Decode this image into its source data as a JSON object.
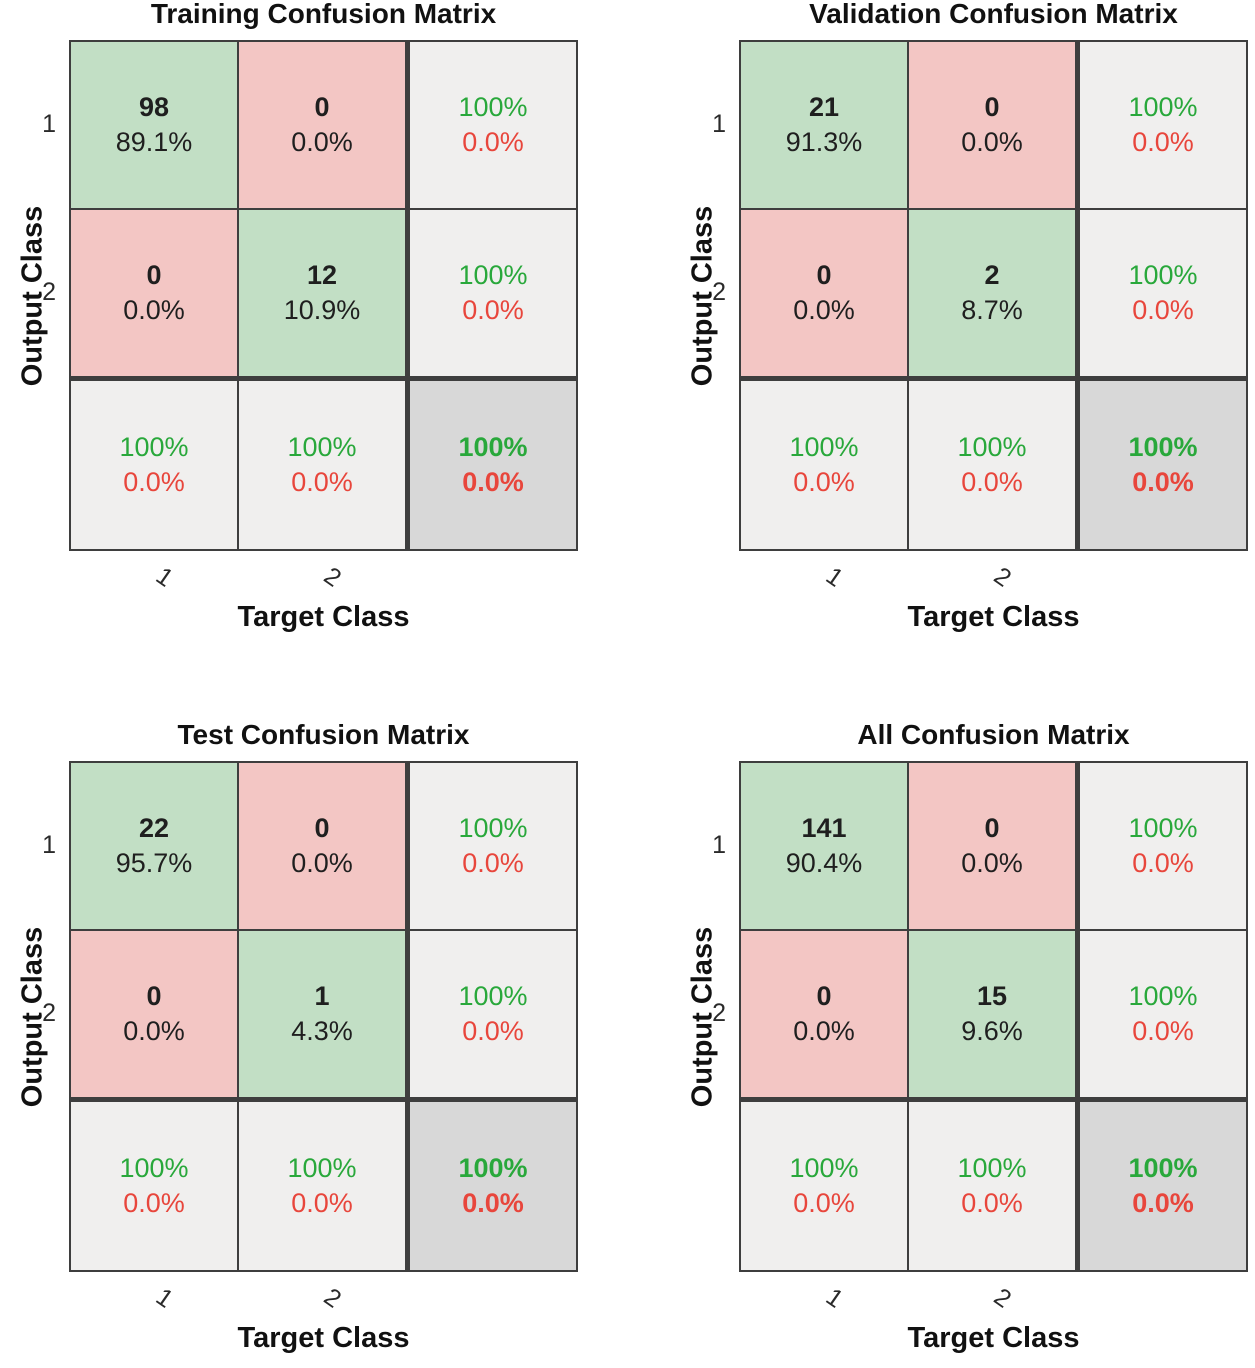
{
  "figure_name": "Neural network confusion matrices",
  "colors": {
    "correct_bg": "#c2dfc5",
    "incorrect_bg": "#f3c6c4",
    "summary_bg": "#f0efee",
    "total_bg": "#d8d8d8",
    "grid_line": "#3e3e3e",
    "good_text": "#29a83b",
    "bad_text": "#e8463c",
    "ink": "#1f1f1f"
  },
  "panels": [
    {
      "title": "Training Confusion Matrix",
      "ylabel": "Output Class",
      "xlabel": "Target Class",
      "row_ticks": [
        "1",
        "2"
      ],
      "col_ticks": [
        "1",
        "2"
      ],
      "cells": [
        [
          {
            "t": "correct",
            "l1": "98",
            "l2": "89.1%"
          },
          {
            "t": "incorrect",
            "l1": "0",
            "l2": "0.0%"
          },
          {
            "t": "summary",
            "l1": "100%",
            "l2": "0.0%"
          }
        ],
        [
          {
            "t": "incorrect",
            "l1": "0",
            "l2": "0.0%"
          },
          {
            "t": "correct",
            "l1": "12",
            "l2": "10.9%"
          },
          {
            "t": "summary",
            "l1": "100%",
            "l2": "0.0%"
          }
        ],
        [
          {
            "t": "summary",
            "l1": "100%",
            "l2": "0.0%"
          },
          {
            "t": "summary",
            "l1": "100%",
            "l2": "0.0%"
          },
          {
            "t": "total",
            "l1": "100%",
            "l2": "0.0%"
          }
        ]
      ]
    },
    {
      "title": "Validation Confusion Matrix",
      "ylabel": "Output Class",
      "xlabel": "Target Class",
      "row_ticks": [
        "1",
        "2"
      ],
      "col_ticks": [
        "1",
        "2"
      ],
      "cells": [
        [
          {
            "t": "correct",
            "l1": "21",
            "l2": "91.3%"
          },
          {
            "t": "incorrect",
            "l1": "0",
            "l2": "0.0%"
          },
          {
            "t": "summary",
            "l1": "100%",
            "l2": "0.0%"
          }
        ],
        [
          {
            "t": "incorrect",
            "l1": "0",
            "l2": "0.0%"
          },
          {
            "t": "correct",
            "l1": "2",
            "l2": "8.7%"
          },
          {
            "t": "summary",
            "l1": "100%",
            "l2": "0.0%"
          }
        ],
        [
          {
            "t": "summary",
            "l1": "100%",
            "l2": "0.0%"
          },
          {
            "t": "summary",
            "l1": "100%",
            "l2": "0.0%"
          },
          {
            "t": "total",
            "l1": "100%",
            "l2": "0.0%"
          }
        ]
      ]
    },
    {
      "title": "Test Confusion Matrix",
      "ylabel": "Output Class",
      "xlabel": "Target Class",
      "row_ticks": [
        "1",
        "2"
      ],
      "col_ticks": [
        "1",
        "2"
      ],
      "cells": [
        [
          {
            "t": "correct",
            "l1": "22",
            "l2": "95.7%"
          },
          {
            "t": "incorrect",
            "l1": "0",
            "l2": "0.0%"
          },
          {
            "t": "summary",
            "l1": "100%",
            "l2": "0.0%"
          }
        ],
        [
          {
            "t": "incorrect",
            "l1": "0",
            "l2": "0.0%"
          },
          {
            "t": "correct",
            "l1": "1",
            "l2": "4.3%"
          },
          {
            "t": "summary",
            "l1": "100%",
            "l2": "0.0%"
          }
        ],
        [
          {
            "t": "summary",
            "l1": "100%",
            "l2": "0.0%"
          },
          {
            "t": "summary",
            "l1": "100%",
            "l2": "0.0%"
          },
          {
            "t": "total",
            "l1": "100%",
            "l2": "0.0%"
          }
        ]
      ]
    },
    {
      "title": "All Confusion Matrix",
      "ylabel": "Output Class",
      "xlabel": "Target Class",
      "row_ticks": [
        "1",
        "2"
      ],
      "col_ticks": [
        "1",
        "2"
      ],
      "cells": [
        [
          {
            "t": "correct",
            "l1": "141",
            "l2": "90.4%"
          },
          {
            "t": "incorrect",
            "l1": "0",
            "l2": "0.0%"
          },
          {
            "t": "summary",
            "l1": "100%",
            "l2": "0.0%"
          }
        ],
        [
          {
            "t": "incorrect",
            "l1": "0",
            "l2": "0.0%"
          },
          {
            "t": "correct",
            "l1": "15",
            "l2": "9.6%"
          },
          {
            "t": "summary",
            "l1": "100%",
            "l2": "0.0%"
          }
        ],
        [
          {
            "t": "summary",
            "l1": "100%",
            "l2": "0.0%"
          },
          {
            "t": "summary",
            "l1": "100%",
            "l2": "0.0%"
          },
          {
            "t": "total",
            "l1": "100%",
            "l2": "0.0%"
          }
        ]
      ]
    }
  ],
  "chart_data": [
    {
      "type": "heatmap",
      "title": "Training Confusion Matrix",
      "xlabel": "Target Class",
      "ylabel": "Output Class",
      "x_ticklabels": [
        "1",
        "2"
      ],
      "y_ticklabels": [
        "1",
        "2"
      ],
      "counts": [
        [
          98,
          0
        ],
        [
          0,
          12
        ]
      ],
      "count_pct_of_total": [
        [
          "89.1%",
          "0.0%"
        ],
        [
          "0.0%",
          "10.9%"
        ]
      ],
      "row_summary_pct": [
        [
          "100%",
          "0.0%"
        ],
        [
          "100%",
          "0.0%"
        ]
      ],
      "col_summary_pct": [
        [
          "100%",
          "0.0%"
        ],
        [
          "100%",
          "0.0%"
        ]
      ],
      "overall_pct": [
        "100%",
        "0.0%"
      ]
    },
    {
      "type": "heatmap",
      "title": "Validation Confusion Matrix",
      "xlabel": "Target Class",
      "ylabel": "Output Class",
      "x_ticklabels": [
        "1",
        "2"
      ],
      "y_ticklabels": [
        "1",
        "2"
      ],
      "counts": [
        [
          21,
          0
        ],
        [
          0,
          2
        ]
      ],
      "count_pct_of_total": [
        [
          "91.3%",
          "0.0%"
        ],
        [
          "0.0%",
          "8.7%"
        ]
      ],
      "row_summary_pct": [
        [
          "100%",
          "0.0%"
        ],
        [
          "100%",
          "0.0%"
        ]
      ],
      "col_summary_pct": [
        [
          "100%",
          "0.0%"
        ],
        [
          "100%",
          "0.0%"
        ]
      ],
      "overall_pct": [
        "100%",
        "0.0%"
      ]
    },
    {
      "type": "heatmap",
      "title": "Test Confusion Matrix",
      "xlabel": "Target Class",
      "ylabel": "Output Class",
      "x_ticklabels": [
        "1",
        "2"
      ],
      "y_ticklabels": [
        "1",
        "2"
      ],
      "counts": [
        [
          22,
          0
        ],
        [
          0,
          1
        ]
      ],
      "count_pct_of_total": [
        [
          "95.7%",
          "0.0%"
        ],
        [
          "0.0%",
          "4.3%"
        ]
      ],
      "row_summary_pct": [
        [
          "100%",
          "0.0%"
        ],
        [
          "100%",
          "0.0%"
        ]
      ],
      "col_summary_pct": [
        [
          "100%",
          "0.0%"
        ],
        [
          "100%",
          "0.0%"
        ]
      ],
      "overall_pct": [
        "100%",
        "0.0%"
      ]
    },
    {
      "type": "heatmap",
      "title": "All Confusion Matrix",
      "xlabel": "Target Class",
      "ylabel": "Output Class",
      "x_ticklabels": [
        "1",
        "2"
      ],
      "y_ticklabels": [
        "1",
        "2"
      ],
      "counts": [
        [
          141,
          0
        ],
        [
          0,
          15
        ]
      ],
      "count_pct_of_total": [
        [
          "90.4%",
          "0.0%"
        ],
        [
          "0.0%",
          "9.6%"
        ]
      ],
      "row_summary_pct": [
        [
          "100%",
          "0.0%"
        ],
        [
          "100%",
          "0.0%"
        ]
      ],
      "col_summary_pct": [
        [
          "100%",
          "0.0%"
        ],
        [
          "100%",
          "0.0%"
        ]
      ],
      "overall_pct": [
        "100%",
        "0.0%"
      ]
    }
  ]
}
